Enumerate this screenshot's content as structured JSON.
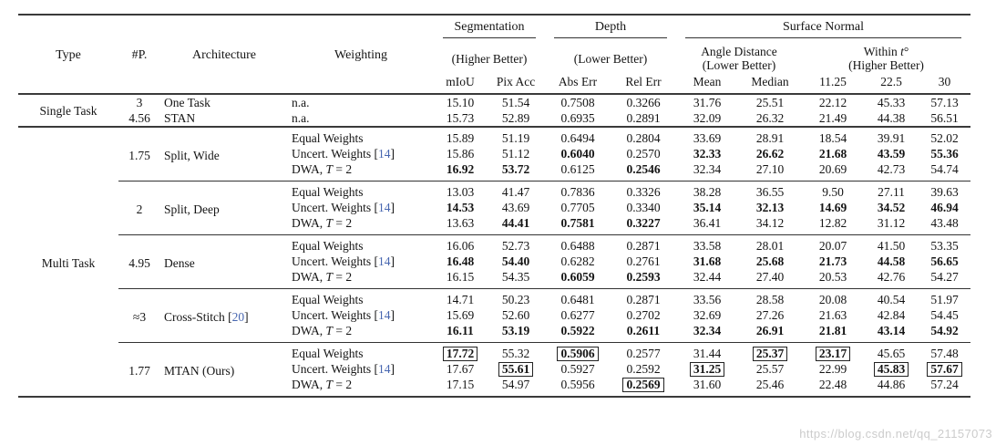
{
  "table": {
    "left_headers": [
      "Type",
      "#P.",
      "Architecture",
      "Weighting"
    ],
    "seg": {
      "label": "Segmentation",
      "better": "(Higher Better)",
      "cols": [
        "mIoU",
        "Pix Acc"
      ]
    },
    "depth": {
      "label": "Depth",
      "better": "(Lower Better)",
      "cols": [
        "Abs Err",
        "Rel Err"
      ]
    },
    "surface": {
      "label": "Surface Normal",
      "angle": {
        "label": "Angle Distance",
        "better": "(Lower Better)",
        "cols": [
          "Mean",
          "Median"
        ]
      },
      "within": {
        "label": "Within t°",
        "better": "(Higher Better)",
        "cols": [
          "11.25",
          "22.5",
          "30"
        ]
      }
    },
    "sections": [
      {
        "type": "Single Task",
        "group_rules": false,
        "groups": [
          {
            "p": "3",
            "arch": "One Task",
            "rows": [
              {
                "w": "n.a.",
                "values": [
                  "15.10",
                  "51.54",
                  "0.7508",
                  "0.3266",
                  "31.76",
                  "25.51",
                  "22.12",
                  "45.33",
                  "57.13"
                ]
              }
            ]
          },
          {
            "p": "4.56",
            "arch": "STAN",
            "rows": [
              {
                "w": "n.a.",
                "values": [
                  "15.73",
                  "52.89",
                  "0.6935",
                  "0.2891",
                  "32.09",
                  "26.32",
                  "21.49",
                  "44.38",
                  "56.51"
                ]
              }
            ]
          }
        ]
      },
      {
        "type": "Multi Task",
        "group_rules": true,
        "groups": [
          {
            "p": "1.75",
            "arch": "Split, Wide",
            "rows": [
              {
                "w": "Equal Weights",
                "values": [
                  "15.89",
                  "51.19",
                  "0.6494",
                  "0.2804",
                  "33.69",
                  "28.91",
                  "18.54",
                  "39.91",
                  "52.02"
                ]
              },
              {
                "w": "Uncert. Weights [14]",
                "values": [
                  "15.86",
                  "51.12",
                  "0.6040",
                  "0.2570",
                  "32.33",
                  "26.62",
                  "21.68",
                  "43.59",
                  "55.36"
                ],
                "bold": [
                  2,
                  4,
                  5,
                  6,
                  7,
                  8
                ]
              },
              {
                "w": "DWA, T = 2",
                "values": [
                  "16.92",
                  "53.72",
                  "0.6125",
                  "0.2546",
                  "32.34",
                  "27.10",
                  "20.69",
                  "42.73",
                  "54.74"
                ],
                "bold": [
                  0,
                  1,
                  3
                ]
              }
            ]
          },
          {
            "p": "2",
            "arch": "Split, Deep",
            "rows": [
              {
                "w": "Equal Weights",
                "values": [
                  "13.03",
                  "41.47",
                  "0.7836",
                  "0.3326",
                  "38.28",
                  "36.55",
                  "9.50",
                  "27.11",
                  "39.63"
                ]
              },
              {
                "w": "Uncert. Weights [14]",
                "values": [
                  "14.53",
                  "43.69",
                  "0.7705",
                  "0.3340",
                  "35.14",
                  "32.13",
                  "14.69",
                  "34.52",
                  "46.94"
                ],
                "bold": [
                  0,
                  4,
                  5,
                  6,
                  7,
                  8
                ]
              },
              {
                "w": "DWA, T = 2",
                "values": [
                  "13.63",
                  "44.41",
                  "0.7581",
                  "0.3227",
                  "36.41",
                  "34.12",
                  "12.82",
                  "31.12",
                  "43.48"
                ],
                "bold": [
                  1,
                  2,
                  3
                ]
              }
            ]
          },
          {
            "p": "4.95",
            "arch": "Dense",
            "rows": [
              {
                "w": "Equal Weights",
                "values": [
                  "16.06",
                  "52.73",
                  "0.6488",
                  "0.2871",
                  "33.58",
                  "28.01",
                  "20.07",
                  "41.50",
                  "53.35"
                ]
              },
              {
                "w": "Uncert. Weights [14]",
                "values": [
                  "16.48",
                  "54.40",
                  "0.6282",
                  "0.2761",
                  "31.68",
                  "25.68",
                  "21.73",
                  "44.58",
                  "56.65"
                ],
                "bold": [
                  0,
                  1,
                  4,
                  5,
                  6,
                  7,
                  8
                ]
              },
              {
                "w": "DWA, T = 2",
                "values": [
                  "16.15",
                  "54.35",
                  "0.6059",
                  "0.2593",
                  "32.44",
                  "27.40",
                  "20.53",
                  "42.76",
                  "54.27"
                ],
                "bold": [
                  2,
                  3
                ]
              }
            ]
          },
          {
            "p": "≈3",
            "arch": "Cross-Stitch [20]",
            "rows": [
              {
                "w": "Equal Weights",
                "values": [
                  "14.71",
                  "50.23",
                  "0.6481",
                  "0.2871",
                  "33.56",
                  "28.58",
                  "20.08",
                  "40.54",
                  "51.97"
                ]
              },
              {
                "w": "Uncert. Weights [14]",
                "values": [
                  "15.69",
                  "52.60",
                  "0.6277",
                  "0.2702",
                  "32.69",
                  "27.26",
                  "21.63",
                  "42.84",
                  "54.45"
                ]
              },
              {
                "w": "DWA, T = 2",
                "values": [
                  "16.11",
                  "53.19",
                  "0.5922",
                  "0.2611",
                  "32.34",
                  "26.91",
                  "21.81",
                  "43.14",
                  "54.92"
                ],
                "bold": [
                  0,
                  1,
                  2,
                  3,
                  4,
                  5,
                  6,
                  7,
                  8
                ]
              }
            ]
          },
          {
            "p": "1.77",
            "arch": "MTAN (Ours)",
            "rows": [
              {
                "w": "Equal Weights",
                "values": [
                  "17.72",
                  "55.32",
                  "0.5906",
                  "0.2577",
                  "31.44",
                  "25.37",
                  "23.17",
                  "45.65",
                  "57.48"
                ],
                "boxed": [
                  0,
                  2,
                  5,
                  6
                ]
              },
              {
                "w": "Uncert. Weights [14]",
                "values": [
                  "17.67",
                  "55.61",
                  "0.5927",
                  "0.2592",
                  "31.25",
                  "25.57",
                  "22.99",
                  "45.83",
                  "57.67"
                ],
                "boxed": [
                  1,
                  4,
                  7,
                  8
                ]
              },
              {
                "w": "DWA, T = 2",
                "values": [
                  "17.15",
                  "54.97",
                  "0.5956",
                  "0.2569",
                  "31.60",
                  "25.46",
                  "22.48",
                  "44.86",
                  "57.24"
                ],
                "boxed": [
                  3
                ]
              }
            ]
          }
        ]
      }
    ]
  },
  "watermark": {
    "text": "https://blog.csdn.net/qq_21157073"
  },
  "colors": {
    "rule": "#3a3a3a",
    "reference_link": "#4766b0",
    "watermark": "#cccccc"
  }
}
